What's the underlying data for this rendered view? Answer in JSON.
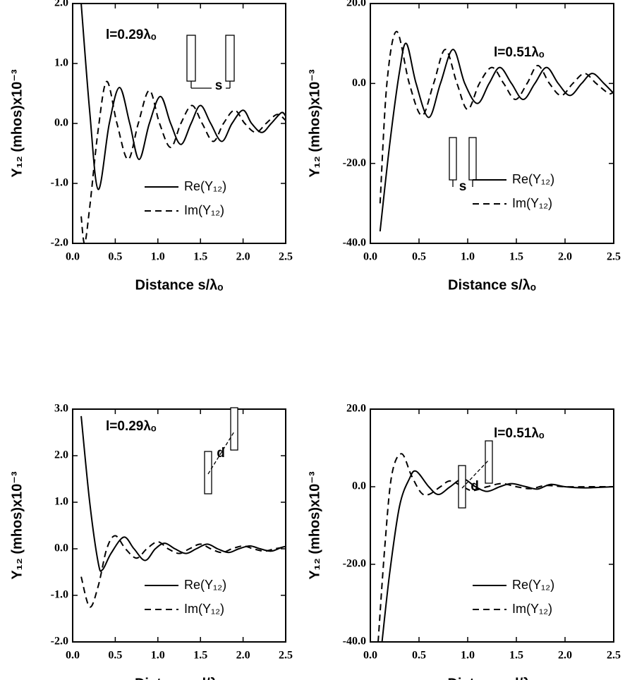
{
  "chart_data": [
    {
      "type": "line",
      "xlabel": "Distance s/λₒ",
      "ylabel": "Y₁₂  (mhos)x10⁻³",
      "annotation": "l=0.29λₒ",
      "inset_label": "s",
      "legend": "lower right",
      "xlim": [
        0,
        2.5
      ],
      "xticks": [
        {
          "value": 0,
          "label": "0.0"
        },
        0.5,
        {
          "value": 1,
          "label": "1.0"
        },
        1.5,
        {
          "value": 2,
          "label": "2.0"
        },
        2.5
      ],
      "ylim": [
        -2,
        2
      ],
      "yticks": [
        {
          "value": -2,
          "label": "-2.0"
        },
        {
          "value": -1,
          "label": "-1.0"
        },
        {
          "value": 0,
          "label": "0.0"
        },
        {
          "value": 1,
          "label": "1.0"
        },
        {
          "value": 2,
          "label": "2.0"
        }
      ],
      "series": [
        {
          "name": "Re(Y₁₂)",
          "color": "#000000",
          "dash": "solid",
          "x": [
            0.1,
            0.2,
            0.3,
            0.43,
            0.55,
            0.67,
            0.78,
            0.9,
            1.03,
            1.15,
            1.27,
            1.39,
            1.5,
            1.62,
            1.75,
            1.87,
            2.0,
            2.1,
            2.22,
            2.33,
            2.45,
            2.5
          ],
          "values": [
            2.0,
            0.2,
            -1.1,
            0,
            0.6,
            0,
            -0.6,
            0,
            0.45,
            0,
            -0.35,
            0,
            0.3,
            0,
            -0.3,
            0,
            0.22,
            0,
            -0.15,
            0,
            0.18,
            0.12
          ]
        },
        {
          "name": "Im(Y₁₂)",
          "color": "#000000",
          "dash": "dashed",
          "x": [
            0.1,
            0.14,
            0.2,
            0.3,
            0.4,
            0.52,
            0.65,
            0.77,
            0.9,
            1.02,
            1.15,
            1.27,
            1.4,
            1.52,
            1.65,
            1.77,
            1.9,
            2.02,
            2.15,
            2.27,
            2.4,
            2.5
          ],
          "values": [
            -1.55,
            -2.0,
            -1.4,
            -0.1,
            0.7,
            0,
            -0.6,
            0,
            0.55,
            0,
            -0.4,
            0,
            0.3,
            0,
            -0.3,
            0,
            0.22,
            0,
            -0.15,
            0,
            0.15,
            0.05
          ]
        }
      ]
    },
    {
      "type": "line",
      "xlabel": "Distance s/λₒ",
      "ylabel": "Y₁₂  (mhos)x10⁻³",
      "annotation": "l=0.51λₒ",
      "inset_label": "s",
      "legend": "center right",
      "xlim": [
        0,
        2.5
      ],
      "xticks": [
        {
          "value": 0,
          "label": "0.0"
        },
        0.5,
        {
          "value": 1,
          "label": "1.0"
        },
        1.5,
        {
          "value": 2,
          "label": "2.0"
        },
        2.5
      ],
      "ylim": [
        -40,
        20
      ],
      "yticks": [
        {
          "value": -40,
          "label": "-40.0"
        },
        {
          "value": -20,
          "label": "-20.0"
        },
        {
          "value": 0,
          "label": "0.0"
        },
        {
          "value": 20,
          "label": "20.0"
        }
      ],
      "series": [
        {
          "name": "Re(Y₁₂)",
          "color": "#000000",
          "dash": "solid",
          "x": [
            0.1,
            0.2,
            0.3,
            0.37,
            0.47,
            0.6,
            0.72,
            0.85,
            0.97,
            1.1,
            1.22,
            1.33,
            1.45,
            1.57,
            1.69,
            1.81,
            1.93,
            2.05,
            2.17,
            2.28,
            2.4,
            2.5
          ],
          "values": [
            -37,
            -15,
            3,
            10,
            0,
            -8.5,
            0,
            8.5,
            0,
            -5,
            0,
            4,
            0,
            -4,
            0,
            4,
            0,
            -3,
            0,
            2.5,
            0,
            -2.5
          ]
        },
        {
          "name": "Im(Y₁₂)",
          "color": "#000000",
          "dash": "dashed",
          "x": [
            0.1,
            0.17,
            0.27,
            0.4,
            0.53,
            0.65,
            0.77,
            0.89,
            1.0,
            1.12,
            1.25,
            1.37,
            1.49,
            1.61,
            1.72,
            1.84,
            1.96,
            2.08,
            2.2,
            2.32,
            2.45,
            2.5
          ],
          "values": [
            -30,
            0,
            13,
            0,
            -8,
            0,
            8.5,
            0,
            -6.5,
            0,
            4,
            0,
            -4,
            0,
            4.5,
            0,
            -3,
            0,
            2.5,
            0,
            -2.5,
            -2
          ]
        }
      ]
    },
    {
      "type": "line",
      "xlabel": "Distance d/λₒ",
      "ylabel": "Y₁₂  (mhos)x10⁻³",
      "annotation": "l=0.29λₒ",
      "inset_label": "d",
      "legend": "lower right",
      "xlim": [
        0,
        2.5
      ],
      "xticks": [
        {
          "value": 0,
          "label": "0.0"
        },
        0.5,
        {
          "value": 1,
          "label": "1.0"
        },
        1.5,
        {
          "value": 2,
          "label": "2.0"
        },
        2.5
      ],
      "ylim": [
        -2,
        3
      ],
      "yticks": [
        {
          "value": -2,
          "label": "-2.0"
        },
        {
          "value": -1,
          "label": "-1.0"
        },
        {
          "value": 0,
          "label": "0.0"
        },
        {
          "value": 1,
          "label": "1.0"
        },
        {
          "value": 2,
          "label": "2.0"
        },
        {
          "value": 3,
          "label": "3.0"
        }
      ],
      "series": [
        {
          "name": "Re(Y₁₂)",
          "color": "#000000",
          "dash": "solid",
          "x": [
            0.1,
            0.2,
            0.3,
            0.35,
            0.45,
            0.6,
            0.72,
            0.85,
            0.97,
            1.08,
            1.2,
            1.33,
            1.45,
            1.58,
            1.7,
            1.83,
            1.95,
            2.08,
            2.2,
            2.33,
            2.45,
            2.5
          ],
          "values": [
            2.85,
            1.0,
            -0.3,
            -0.45,
            -0.1,
            0.25,
            0,
            -0.25,
            0,
            0.12,
            0,
            -0.1,
            0,
            0.1,
            0,
            -0.08,
            0,
            0.06,
            0,
            -0.05,
            0.03,
            0.05
          ]
        },
        {
          "name": "Im(Y₁₂)",
          "color": "#000000",
          "dash": "dashed",
          "x": [
            0.1,
            0.2,
            0.3,
            0.4,
            0.5,
            0.62,
            0.75,
            0.87,
            1.0,
            1.12,
            1.25,
            1.37,
            1.5,
            1.62,
            1.75,
            1.87,
            2.0,
            2.12,
            2.25,
            2.37,
            2.5
          ],
          "values": [
            -0.6,
            -1.25,
            -0.8,
            0,
            0.28,
            0,
            -0.2,
            0,
            0.15,
            0,
            -0.1,
            0,
            0.1,
            0,
            -0.08,
            0,
            0.06,
            0,
            -0.05,
            0,
            0.04
          ]
        }
      ]
    },
    {
      "type": "line",
      "xlabel": "Distance d/λₒ",
      "ylabel": "Y₁₂  (mhos)x10⁻³",
      "annotation": "l=0.51λₒ",
      "inset_label": "d",
      "legend": "lower right",
      "xlim": [
        0,
        2.5
      ],
      "xticks": [
        {
          "value": 0,
          "label": "0.0"
        },
        0.5,
        {
          "value": 1,
          "label": "1.0"
        },
        1.5,
        {
          "value": 2,
          "label": "2.0"
        },
        2.5
      ],
      "ylim": [
        -40,
        20
      ],
      "yticks": [
        {
          "value": -40,
          "label": "-40.0"
        },
        {
          "value": -20,
          "label": "-20.0"
        },
        {
          "value": 0,
          "label": "0.0"
        },
        {
          "value": 20,
          "label": "20.0"
        }
      ],
      "series": [
        {
          "name": "Re(Y₁₂)",
          "color": "#000000",
          "dash": "solid",
          "x": [
            0.12,
            0.2,
            0.3,
            0.4,
            0.47,
            0.6,
            0.7,
            0.82,
            0.95,
            1.08,
            1.2,
            1.33,
            1.45,
            1.6,
            1.72,
            1.85,
            2.0,
            2.2,
            2.5
          ],
          "values": [
            -40,
            -22,
            -5,
            2,
            4,
            0,
            -2,
            0,
            2,
            0,
            -1.2,
            0,
            0.8,
            0,
            -0.6,
            0.6,
            0,
            -0.3,
            0
          ]
        },
        {
          "name": "Im(Y₁₂)",
          "color": "#000000",
          "dash": "dashed",
          "x": [
            0.08,
            0.15,
            0.22,
            0.32,
            0.42,
            0.52,
            0.6,
            0.72,
            0.82,
            0.95,
            1.05,
            1.2,
            1.35,
            1.5,
            1.65,
            1.8,
            2.0,
            2.3,
            2.5
          ],
          "values": [
            -40,
            -15,
            3,
            8.5,
            3,
            -1.5,
            -2,
            0,
            1.5,
            0,
            -1,
            0,
            0.8,
            0,
            -0.5,
            0.3,
            0,
            0,
            0
          ]
        }
      ]
    }
  ]
}
